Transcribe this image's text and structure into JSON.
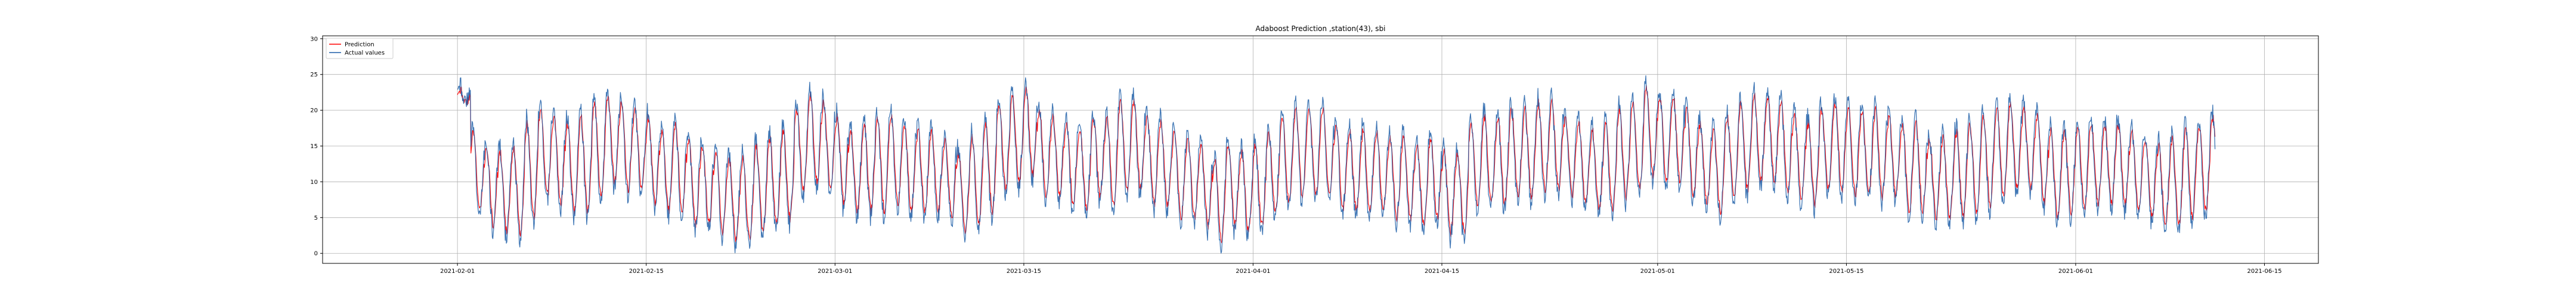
{
  "chart_data": {
    "type": "line",
    "title": "Adaboost Prediction ,station(43), sbi",
    "xlabel": "",
    "ylabel": "",
    "x_range": [
      "2021-01-22",
      "2021-06-19"
    ],
    "ylim": [
      -1.4,
      30.4
    ],
    "x_ticks": [
      "2021-02-01",
      "2021-02-15",
      "2021-03-01",
      "2021-03-15",
      "2021-04-01",
      "2021-04-15",
      "2021-05-01",
      "2021-05-15",
      "2021-06-01",
      "2021-06-15"
    ],
    "y_ticks": [
      0,
      5,
      10,
      15,
      20,
      25,
      30
    ],
    "grid": true,
    "legend_position": "top-left",
    "time_start": "2021-02-01 00:00",
    "time_end": "2021-06-11 08:00",
    "sampling": "hourly",
    "series": [
      {
        "name": "Prediction",
        "color": "#ff0000",
        "envelope_low": [
          21,
          6,
          4,
          3,
          3,
          5,
          8,
          7,
          6,
          6,
          8,
          10,
          9,
          9,
          7,
          6,
          6,
          4,
          4,
          3,
          2,
          2,
          3,
          4,
          5,
          9,
          10,
          9,
          7,
          6,
          6,
          6,
          7,
          6,
          6,
          6,
          5,
          3,
          4,
          6,
          9,
          10,
          11,
          8,
          8,
          7,
          6,
          8,
          7,
          9,
          9,
          7,
          7,
          5,
          5,
          4,
          2,
          4,
          3,
          4,
          6,
          7,
          8,
          8,
          8,
          6,
          6,
          6,
          6,
          5,
          5,
          4,
          5,
          3,
          3,
          7,
          7,
          7,
          8,
          8,
          9,
          9,
          8,
          7,
          6,
          6,
          8,
          9,
          11,
          10,
          10,
          8,
          7,
          6,
          8,
          9,
          10,
          10,
          9,
          8,
          7,
          9,
          9,
          8,
          8,
          8,
          8,
          6,
          6,
          5,
          5,
          5,
          6,
          7,
          8,
          9,
          9,
          7,
          5,
          6,
          6,
          7,
          7,
          7,
          6,
          5,
          4,
          4,
          5,
          6,
          7,
          8,
          8,
          9,
          9,
          8,
          7,
          8
        ],
        "envelope_high": [
          23,
          17,
          15,
          14,
          15,
          18,
          20,
          19,
          18,
          19,
          21,
          22,
          21,
          20,
          19,
          17,
          18,
          16,
          15,
          14,
          13,
          13,
          15,
          16,
          17,
          20,
          22,
          21,
          19,
          17,
          18,
          19,
          19,
          18,
          17,
          17,
          16,
          14,
          16,
          18,
          21,
          22,
          23,
          20,
          19,
          18,
          17,
          19,
          19,
          21,
          21,
          19,
          18,
          17,
          16,
          15,
          13,
          15,
          14,
          15,
          17,
          19,
          20,
          20,
          20,
          18,
          17,
          17,
          17,
          16,
          16,
          15,
          16,
          14,
          14,
          18,
          19,
          19,
          20,
          20,
          21,
          21,
          19,
          18,
          17,
          18,
          20,
          21,
          23,
          22,
          22,
          20,
          18,
          17,
          19,
          21,
          22,
          22,
          21,
          19,
          18,
          20,
          21,
          20,
          20,
          20,
          19,
          18,
          18,
          16,
          16,
          17,
          18,
          19,
          20,
          21,
          20,
          19,
          17,
          17,
          18,
          18,
          18,
          18,
          17,
          16,
          15,
          16,
          17,
          18,
          19,
          20,
          20,
          21,
          20,
          19,
          18,
          19
        ]
      },
      {
        "name": "Actual values",
        "color": "#1f5fa8",
        "envelope_low": [
          21,
          5,
          3,
          2,
          2,
          4,
          7,
          6,
          5,
          5,
          7,
          9,
          8,
          8,
          6,
          5,
          5,
          3,
          3,
          2,
          1,
          1,
          2,
          3,
          4,
          8,
          9,
          8,
          6,
          5,
          5,
          5,
          6,
          5,
          5,
          5,
          4,
          2,
          3,
          5,
          8,
          9,
          10,
          7,
          7,
          6,
          5,
          7,
          6,
          8,
          8,
          6,
          6,
          4,
          4,
          3,
          1,
          3,
          2,
          3,
          5,
          6,
          7,
          7,
          7,
          5,
          5,
          5,
          5,
          4,
          4,
          3,
          4,
          2,
          2,
          6,
          6,
          6,
          7,
          7,
          8,
          8,
          7,
          6,
          5,
          5,
          7,
          8,
          10,
          9,
          9,
          7,
          6,
          5,
          7,
          8,
          9,
          9,
          8,
          7,
          6,
          8,
          8,
          7,
          7,
          7,
          7,
          5,
          5,
          4,
          4,
          4,
          5,
          6,
          7,
          8,
          8,
          6,
          4,
          5,
          5,
          6,
          6,
          6,
          5,
          4,
          3,
          3,
          4,
          5,
          6,
          7,
          7,
          8,
          8,
          7,
          6,
          7
        ],
        "envelope_high": [
          24,
          18,
          16,
          15,
          16,
          19,
          21,
          20,
          19,
          20,
          22,
          23,
          22,
          21,
          20,
          18,
          19,
          17,
          16,
          15,
          14,
          14,
          16,
          17,
          18,
          21,
          23,
          22,
          20,
          18,
          19,
          20,
          20,
          19,
          18,
          18,
          17,
          15,
          17,
          19,
          22,
          23,
          24,
          21,
          20,
          19,
          18,
          20,
          20,
          22,
          22,
          20,
          19,
          18,
          17,
          16,
          14,
          16,
          15,
          16,
          18,
          20,
          21,
          21,
          21,
          19,
          18,
          18,
          18,
          17,
          17,
          16,
          17,
          15,
          15,
          19,
          20,
          20,
          21,
          21,
          22,
          22,
          20,
          19,
          18,
          19,
          21,
          22,
          24,
          23,
          23,
          21,
          19,
          18,
          20,
          22,
          23,
          23,
          22,
          20,
          19,
          21,
          22,
          21,
          21,
          21,
          20,
          19,
          19,
          17,
          17,
          18,
          19,
          20,
          21,
          22,
          21,
          20,
          18,
          18,
          19,
          19,
          19,
          19,
          18,
          17,
          16,
          17,
          18,
          19,
          20,
          21,
          21,
          22,
          21,
          20,
          19,
          20
        ]
      }
    ]
  }
}
